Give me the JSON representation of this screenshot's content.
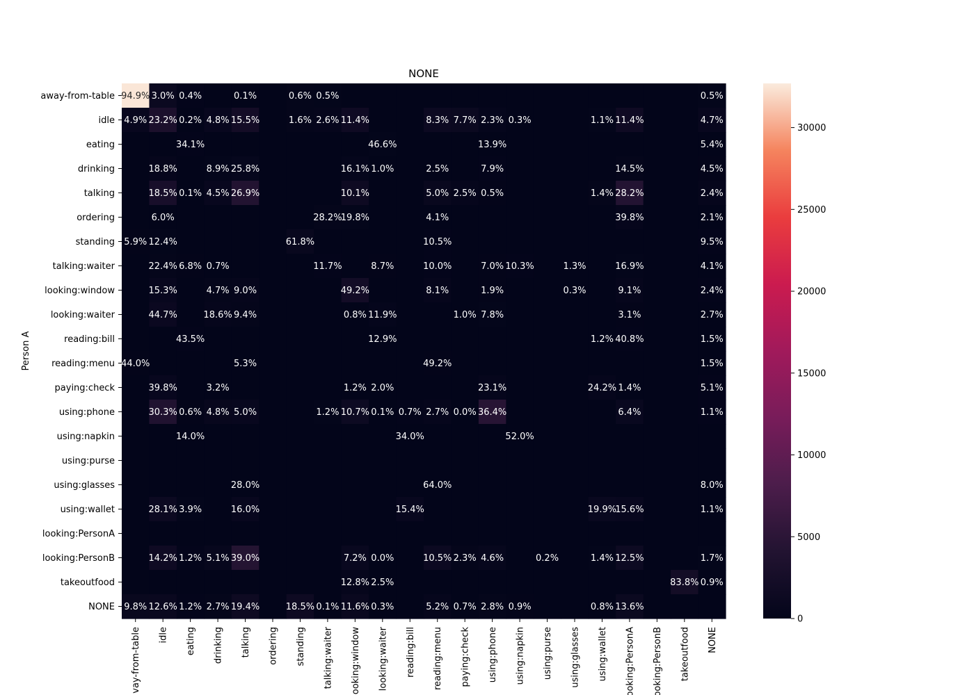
{
  "chart_data": {
    "type": "heatmap",
    "title": "NONE",
    "xlabel": "",
    "ylabel": "Person A",
    "x_categories": [
      "away-from-table",
      "idle",
      "eating",
      "drinking",
      "talking",
      "ordering",
      "standing",
      "talking:waiter",
      "looking:window",
      "looking:waiter",
      "reading:bill",
      "reading:menu",
      "paying:check",
      "using:phone",
      "using:napkin",
      "using:purse",
      "using:glasses",
      "using:wallet",
      "looking:PersonA",
      "looking:PersonB",
      "takeoutfood",
      "NONE"
    ],
    "y_categories": [
      "away-from-table",
      "idle",
      "eating",
      "drinking",
      "talking",
      "ordering",
      "standing",
      "talking:waiter",
      "looking:window",
      "looking:waiter",
      "reading:bill",
      "reading:menu",
      "paying:check",
      "using:phone",
      "using:napkin",
      "using:purse",
      "using:glasses",
      "using:wallet",
      "looking:PersonA",
      "looking:PersonB",
      "takeoutfood",
      "NONE"
    ],
    "x_tick_labels": [
      "vay-from-table",
      "idle",
      "eating",
      "drinking",
      "talking",
      "ordering",
      "standing",
      "talking:waiter",
      "ooking:window",
      "looking:waiter",
      "reading:bill",
      "reading:menu",
      "paying:check",
      "using:phone",
      "using:napkin",
      "using:purse",
      "using:glasses",
      "using:wallet",
      "ooking:PersonA",
      "ooking:PersonB",
      "takeoutfood",
      "NONE"
    ],
    "labels": [
      [
        "94.9%",
        "3.0%",
        "0.4%",
        "",
        "0.1%",
        "",
        "0.6%",
        "0.5%",
        "",
        "",
        "",
        "",
        "",
        "",
        "",
        "",
        "",
        "",
        "",
        "",
        "",
        "0.5%"
      ],
      [
        "4.9%",
        "23.2%",
        "0.2%",
        "4.8%",
        "15.5%",
        "",
        "1.6%",
        "2.6%",
        "11.4%",
        "",
        "",
        "8.3%",
        "7.7%",
        "2.3%",
        "0.3%",
        "",
        "",
        "1.1%",
        "11.4%",
        "",
        "",
        "4.7%"
      ],
      [
        "",
        "",
        "34.1%",
        "",
        "",
        "",
        "",
        "",
        "",
        "46.6%",
        "",
        "",
        "",
        "13.9%",
        "",
        "",
        "",
        "",
        "",
        "",
        "",
        "5.4%"
      ],
      [
        "",
        "18.8%",
        "",
        "8.9%",
        "25.8%",
        "",
        "",
        "",
        "16.1%",
        "1.0%",
        "",
        "2.5%",
        "",
        "7.9%",
        "",
        "",
        "",
        "",
        "14.5%",
        "",
        "",
        "4.5%"
      ],
      [
        "",
        "18.5%",
        "0.1%",
        "4.5%",
        "26.9%",
        "",
        "",
        "",
        "10.1%",
        "",
        "",
        "5.0%",
        "2.5%",
        "0.5%",
        "",
        "",
        "",
        "1.4%",
        "28.2%",
        "",
        "",
        "2.4%"
      ],
      [
        "",
        "6.0%",
        "",
        "",
        "",
        "",
        "",
        "28.2%",
        "19.8%",
        "",
        "",
        "4.1%",
        "",
        "",
        "",
        "",
        "",
        "",
        "39.8%",
        "",
        "",
        "2.1%"
      ],
      [
        "5.9%",
        "12.4%",
        "",
        "",
        "",
        "",
        "61.8%",
        "",
        "",
        "",
        "",
        "10.5%",
        "",
        "",
        "",
        "",
        "",
        "",
        "",
        "",
        "",
        "9.5%"
      ],
      [
        "",
        "22.4%",
        "6.8%",
        "0.7%",
        "",
        "",
        "",
        "11.7%",
        "",
        "8.7%",
        "",
        "10.0%",
        "",
        "7.0%",
        "10.3%",
        "",
        "1.3%",
        "",
        "16.9%",
        "",
        "",
        "4.1%"
      ],
      [
        "",
        "15.3%",
        "",
        "4.7%",
        "9.0%",
        "",
        "",
        "",
        "49.2%",
        "",
        "",
        "8.1%",
        "",
        "1.9%",
        "",
        "",
        "0.3%",
        "",
        "9.1%",
        "",
        "",
        "2.4%"
      ],
      [
        "",
        "44.7%",
        "",
        "18.6%",
        "9.4%",
        "",
        "",
        "",
        "0.8%",
        "11.9%",
        "",
        "",
        "1.0%",
        "7.8%",
        "",
        "",
        "",
        "",
        "3.1%",
        "",
        "",
        "2.7%"
      ],
      [
        "",
        "",
        "43.5%",
        "",
        "",
        "",
        "",
        "",
        "",
        "12.9%",
        "",
        "",
        "",
        "",
        "",
        "",
        "",
        "1.2%",
        "40.8%",
        "",
        "",
        "1.5%"
      ],
      [
        "44.0%",
        "",
        "",
        "",
        "5.3%",
        "",
        "",
        "",
        "",
        "",
        "",
        "49.2%",
        "",
        "",
        "",
        "",
        "",
        "",
        "",
        "",
        "",
        "1.5%"
      ],
      [
        "",
        "39.8%",
        "",
        "3.2%",
        "",
        "",
        "",
        "",
        "1.2%",
        "2.0%",
        "",
        "",
        "",
        "23.1%",
        "",
        "",
        "",
        "24.2%",
        "1.4%",
        "",
        "",
        "5.1%"
      ],
      [
        "",
        "30.3%",
        "0.6%",
        "4.8%",
        "5.0%",
        "",
        "",
        "1.2%",
        "10.7%",
        "0.1%",
        "0.7%",
        "2.7%",
        "0.0%",
        "36.4%",
        "",
        "",
        "",
        "",
        "6.4%",
        "",
        "",
        "1.1%"
      ],
      [
        "",
        "",
        "14.0%",
        "",
        "",
        "",
        "",
        "",
        "",
        "",
        "34.0%",
        "",
        "",
        "",
        "52.0%",
        "",
        "",
        "",
        "",
        "",
        "",
        ""
      ],
      [
        "",
        "",
        "",
        "",
        "",
        "",
        "",
        "",
        "",
        "",
        "",
        "",
        "",
        "",
        "",
        "",
        "",
        "",
        "",
        "",
        "",
        ""
      ],
      [
        "",
        "",
        "",
        "",
        "28.0%",
        "",
        "",
        "",
        "",
        "",
        "",
        "64.0%",
        "",
        "",
        "",
        "",
        "",
        "",
        "",
        "",
        "",
        "8.0%"
      ],
      [
        "",
        "28.1%",
        "3.9%",
        "",
        "16.0%",
        "",
        "",
        "",
        "",
        "",
        "15.4%",
        "",
        "",
        "",
        "",
        "",
        "",
        "19.9%",
        "15.6%",
        "",
        "",
        "1.1%"
      ],
      [
        "",
        "",
        "",
        "",
        "",
        "",
        "",
        "",
        "",
        "",
        "",
        "",
        "",
        "",
        "",
        "",
        "",
        "",
        "",
        "",
        "",
        ""
      ],
      [
        "",
        "14.2%",
        "1.2%",
        "5.1%",
        "39.0%",
        "",
        "",
        "",
        "7.2%",
        "0.0%",
        "",
        "10.5%",
        "2.3%",
        "4.6%",
        "",
        "0.2%",
        "",
        "1.4%",
        "12.5%",
        "",
        "",
        "1.7%"
      ],
      [
        "",
        "",
        "",
        "",
        "",
        "",
        "",
        "",
        "12.8%",
        "2.5%",
        "",
        "",
        "",
        "",
        "",
        "",
        "",
        "",
        "",
        "",
        "83.8%",
        "0.9%"
      ],
      [
        "9.8%",
        "12.6%",
        "1.2%",
        "2.7%",
        "19.4%",
        "",
        "18.5%",
        "0.1%",
        "11.6%",
        "0.3%",
        "",
        "5.2%",
        "0.7%",
        "2.8%",
        "0.9%",
        "",
        "",
        "0.8%",
        "13.6%",
        "",
        "",
        ""
      ]
    ],
    "values": [
      [
        32500,
        1030,
        140,
        0,
        35,
        0,
        205,
        170,
        0,
        0,
        0,
        0,
        0,
        0,
        0,
        0,
        0,
        0,
        0,
        0,
        0,
        170
      ],
      [
        680,
        3260,
        30,
        670,
        2180,
        0,
        220,
        360,
        1600,
        0,
        0,
        1160,
        1080,
        320,
        40,
        0,
        0,
        150,
        1600,
        0,
        0,
        660
      ],
      [
        0,
        0,
        110,
        0,
        0,
        0,
        0,
        0,
        0,
        150,
        0,
        0,
        0,
        45,
        0,
        0,
        0,
        0,
        0,
        0,
        0,
        17
      ],
      [
        0,
        330,
        0,
        150,
        450,
        0,
        0,
        0,
        280,
        17,
        0,
        44,
        0,
        140,
        0,
        0,
        0,
        0,
        250,
        0,
        0,
        80
      ],
      [
        0,
        2770,
        15,
        670,
        4030,
        0,
        0,
        0,
        1510,
        0,
        0,
        750,
        375,
        75,
        0,
        0,
        0,
        210,
        4230,
        0,
        0,
        360
      ],
      [
        0,
        50,
        0,
        0,
        0,
        0,
        0,
        230,
        160,
        0,
        0,
        34,
        0,
        0,
        0,
        0,
        0,
        0,
        330,
        0,
        0,
        17
      ],
      [
        75,
        160,
        0,
        0,
        0,
        0,
        790,
        0,
        0,
        0,
        0,
        135,
        0,
        0,
        0,
        0,
        0,
        0,
        0,
        0,
        0,
        120
      ],
      [
        0,
        220,
        70,
        7,
        0,
        0,
        0,
        115,
        0,
        85,
        0,
        100,
        0,
        70,
        100,
        0,
        13,
        0,
        170,
        0,
        0,
        40
      ],
      [
        0,
        640,
        0,
        200,
        380,
        0,
        0,
        0,
        2060,
        0,
        0,
        340,
        0,
        80,
        0,
        0,
        13,
        0,
        380,
        0,
        0,
        100
      ],
      [
        0,
        1010,
        0,
        420,
        210,
        0,
        0,
        0,
        18,
        270,
        0,
        0,
        23,
        175,
        0,
        0,
        0,
        0,
        70,
        0,
        0,
        60
      ],
      [
        0,
        0,
        110,
        0,
        0,
        0,
        0,
        0,
        0,
        33,
        0,
        0,
        0,
        0,
        0,
        0,
        0,
        3,
        105,
        0,
        0,
        4
      ],
      [
        70,
        0,
        0,
        0,
        8,
        0,
        0,
        0,
        0,
        0,
        0,
        78,
        0,
        0,
        0,
        0,
        0,
        0,
        0,
        0,
        0,
        2
      ],
      [
        0,
        710,
        0,
        57,
        0,
        0,
        0,
        0,
        21,
        36,
        0,
        0,
        0,
        410,
        0,
        0,
        0,
        430,
        25,
        0,
        0,
        91
      ],
      [
        0,
        3840,
        76,
        610,
        630,
        0,
        0,
        150,
        1360,
        13,
        90,
        340,
        0,
        4610,
        0,
        0,
        0,
        0,
        810,
        0,
        0,
        140
      ],
      [
        0,
        0,
        7,
        0,
        0,
        0,
        0,
        0,
        0,
        0,
        17,
        0,
        0,
        0,
        26,
        0,
        0,
        0,
        0,
        0,
        0,
        0
      ],
      [
        0,
        0,
        0,
        0,
        0,
        0,
        0,
        0,
        0,
        0,
        0,
        0,
        0,
        0,
        0,
        0,
        0,
        0,
        0,
        0,
        0,
        0
      ],
      [
        0,
        0,
        0,
        0,
        7,
        0,
        0,
        0,
        0,
        0,
        0,
        16,
        0,
        0,
        0,
        0,
        0,
        0,
        0,
        0,
        0,
        2
      ],
      [
        0,
        1200,
        170,
        0,
        690,
        0,
        0,
        0,
        0,
        0,
        660,
        0,
        0,
        0,
        0,
        0,
        0,
        850,
        670,
        0,
        0,
        47
      ],
      [
        0,
        0,
        0,
        0,
        0,
        0,
        0,
        0,
        0,
        0,
        0,
        0,
        0,
        0,
        0,
        0,
        0,
        0,
        0,
        0,
        0,
        0
      ],
      [
        0,
        1570,
        130,
        560,
        4310,
        0,
        0,
        0,
        800,
        0,
        0,
        1160,
        250,
        510,
        0,
        20,
        0,
        150,
        1380,
        0,
        0,
        190
      ],
      [
        0,
        0,
        0,
        0,
        0,
        0,
        0,
        0,
        340,
        65,
        0,
        0,
        0,
        0,
        0,
        0,
        0,
        0,
        0,
        0,
        2200,
        24
      ],
      [
        750,
        970,
        90,
        210,
        1490,
        0,
        1420,
        8,
        890,
        23,
        0,
        400,
        54,
        215,
        70,
        0,
        0,
        60,
        1050,
        0,
        0,
        0
      ]
    ],
    "colorbar": {
      "min": 0,
      "max": 32700,
      "ticks": [
        0,
        5000,
        10000,
        15000,
        20000,
        25000,
        30000
      ],
      "colormap": "rocket"
    },
    "legend": "colorbar-right",
    "grid": false
  }
}
